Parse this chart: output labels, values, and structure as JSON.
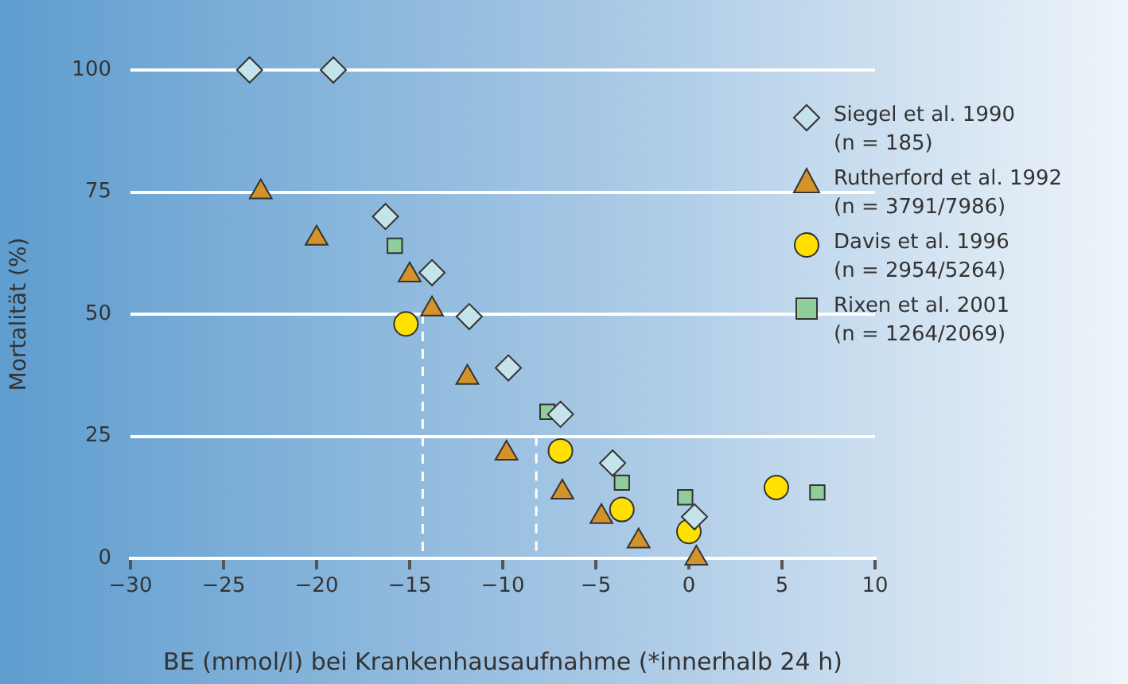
{
  "chart_data": {
    "type": "scatter",
    "xlabel": "BE (mmol/l) bei Krankenhausaufnahme (*innerhalb 24 h)",
    "ylabel": "Mortalität (%)",
    "xlim": [
      -30,
      10
    ],
    "xticks": [
      -30,
      -25,
      -20,
      -15,
      -10,
      -5,
      0,
      5,
      10
    ],
    "ylim": [
      0,
      100
    ],
    "yticks": [
      0,
      25,
      50,
      75,
      100
    ],
    "grid": "y",
    "legend": "top right",
    "series": [
      {
        "name": "Siegel et al. 1990\n(n = 185)",
        "color": "#c5e3ea",
        "marker": "diamond",
        "x": [
          -23.6,
          -19.1,
          -16.3,
          -13.8,
          -11.8,
          -9.7,
          -6.9,
          -4.1,
          0.3
        ],
        "values": [
          100,
          100,
          70,
          58.5,
          49.5,
          39,
          29.5,
          19.5,
          8.5
        ]
      },
      {
        "name": "Rutherford et al. 1992\n(n = 3791/7986)",
        "color": "#d4922a",
        "marker": "triangle",
        "x": [
          -23.0,
          -20.0,
          -15.0,
          -13.8,
          -11.9,
          -9.8,
          -6.8,
          -4.7,
          -2.7,
          0.4
        ],
        "values": [
          75,
          65.5,
          58,
          51,
          37,
          21.5,
          13.5,
          8.5,
          3.5,
          0
        ]
      },
      {
        "name": "Davis et al. 1996\n(n = 2954/5264)",
        "color": "#ffe000",
        "marker": "circle",
        "x": [
          -15.2,
          -6.9,
          -3.6,
          0,
          4.7
        ],
        "values": [
          48,
          22,
          10,
          5.5,
          14.5
        ]
      },
      {
        "name": "Rixen et al. 2001\n(n = 1264/2069)",
        "color": "#8fce9a",
        "marker": "square",
        "x": [
          -15.8,
          -7.6,
          -3.6,
          -0.2,
          6.9
        ],
        "values": [
          64,
          30,
          15.5,
          12.5,
          13.5
        ]
      },
      {
        "type": "line",
        "color": "#ffffff",
        "line_style": "dashed",
        "marker": "none",
        "x": [
          -14.3,
          -14.3
        ],
        "values": [
          50,
          0
        ]
      },
      {
        "type": "line",
        "color": "#ffffff",
        "line_style": "dashed",
        "marker": "none",
        "x": [
          -8.2,
          -8.2
        ],
        "values": [
          25,
          0
        ]
      }
    ]
  }
}
